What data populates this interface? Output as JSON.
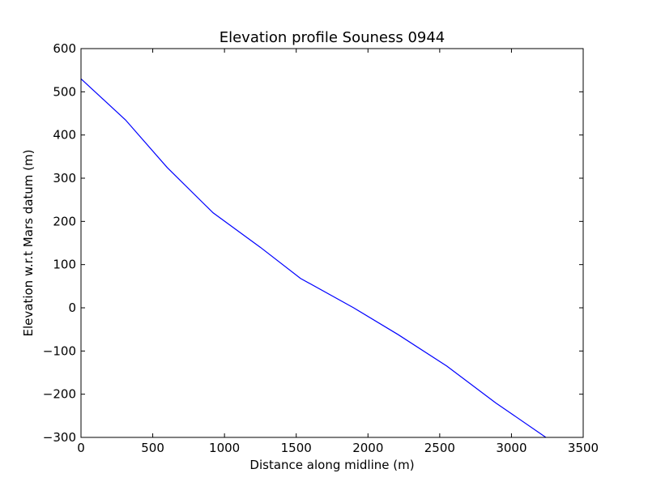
{
  "chart_data": {
    "type": "line",
    "title": "Elevation profile Souness 0944",
    "xlabel": "Distance along midline (m)",
    "ylabel": "Elevation w.r.t Mars datum (m)",
    "xlim": [
      0,
      3500
    ],
    "ylim": [
      -300,
      600
    ],
    "xticks": [
      0,
      500,
      1000,
      1500,
      2000,
      2500,
      3000,
      3500
    ],
    "yticks": [
      -300,
      -200,
      -100,
      0,
      100,
      200,
      300,
      400,
      500,
      600
    ],
    "xtick_labels": [
      "0",
      "500",
      "1000",
      "1500",
      "2000",
      "2500",
      "3000",
      "3500"
    ],
    "ytick_labels": [
      "−300",
      "−200",
      "−100",
      "0",
      "100",
      "200",
      "300",
      "400",
      "500",
      "600"
    ],
    "grid": false,
    "series": [
      {
        "color": "#0000ff",
        "x": [
          0,
          310,
          600,
          920,
          1250,
          1530,
          1900,
          2210,
          2550,
          2890,
          3240
        ],
        "y": [
          530,
          435,
          325,
          220,
          140,
          68,
          0,
          -62,
          -135,
          -220,
          -300
        ]
      }
    ]
  }
}
